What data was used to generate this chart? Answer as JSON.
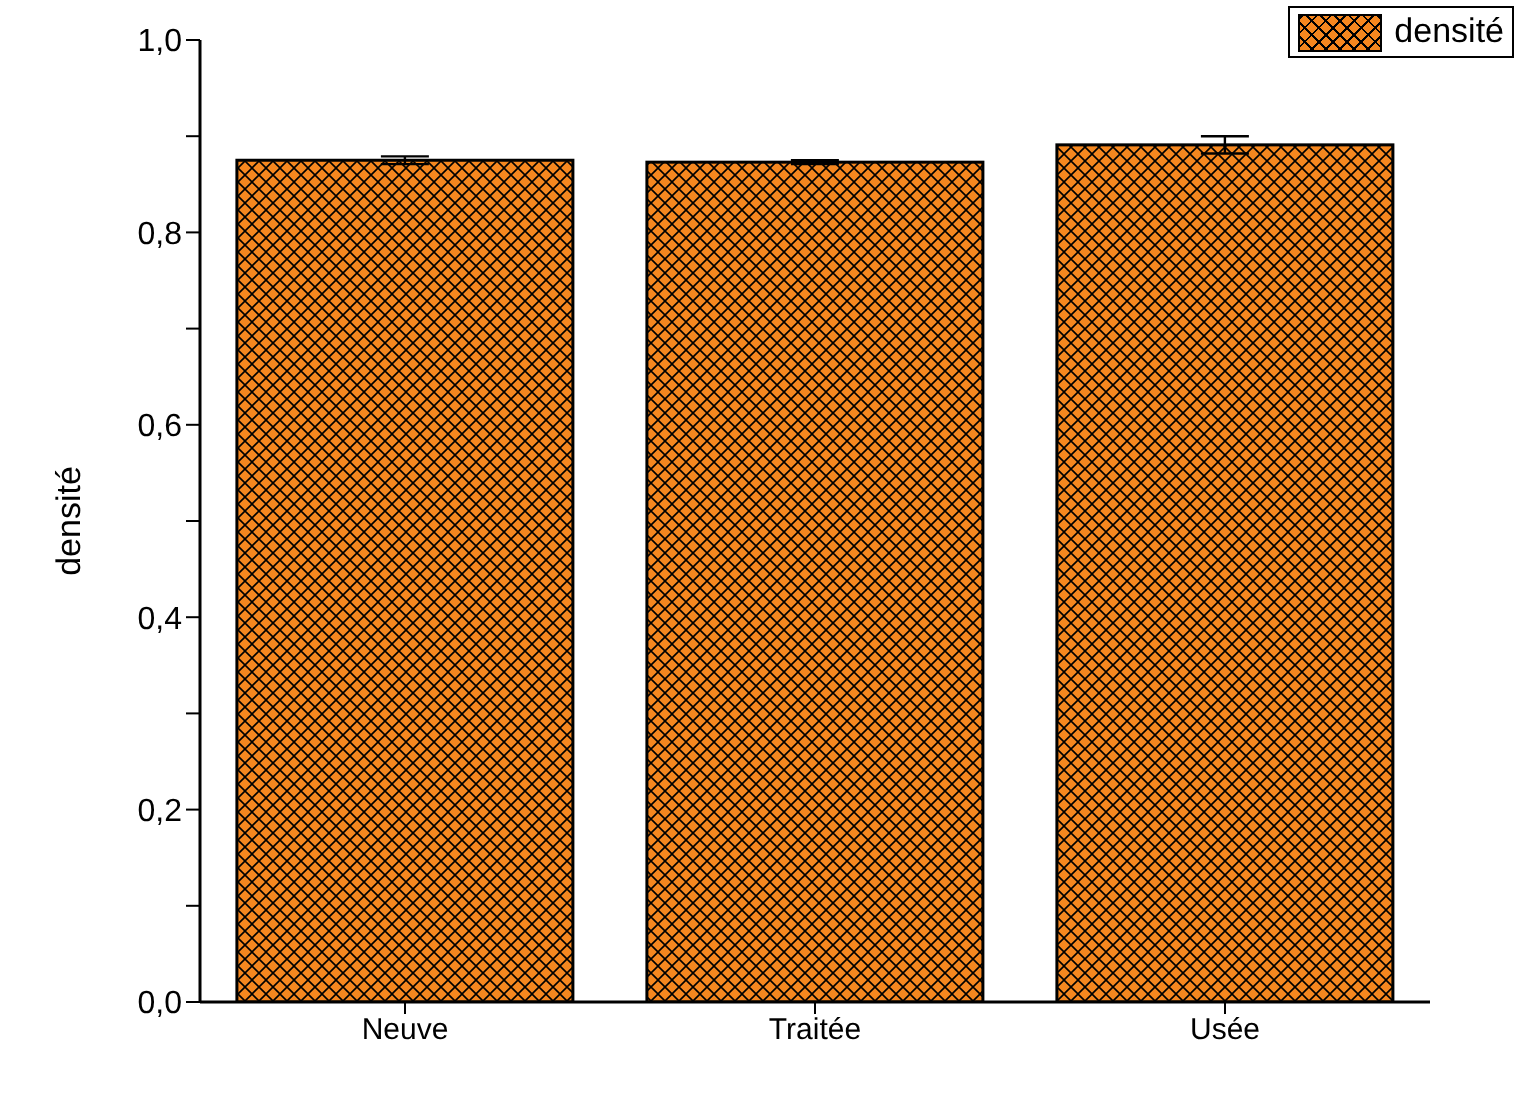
{
  "chart_data": {
    "type": "bar",
    "ylabel": "densité",
    "categories": [
      "Neuve",
      "Traitée",
      "Usée"
    ],
    "series": [
      {
        "name": "densité",
        "color": "#f5871f",
        "values": [
          0.875,
          0.873,
          0.891
        ],
        "errors": [
          0.004,
          0.002,
          0.009
        ]
      }
    ],
    "ylim": [
      0,
      1
    ],
    "yticks": [
      {
        "value": 0,
        "label": "0,0"
      },
      {
        "value": 0.1,
        "label": null
      },
      {
        "value": 0.2,
        "label": "0,2"
      },
      {
        "value": 0.3,
        "label": null
      },
      {
        "value": 0.4,
        "label": "0,4"
      },
      {
        "value": 0.5,
        "label": null
      },
      {
        "value": 0.6,
        "label": "0,6"
      },
      {
        "value": 0.7,
        "label": null
      },
      {
        "value": 0.8,
        "label": "0,8"
      },
      {
        "value": 0.9,
        "label": null
      },
      {
        "value": 1,
        "label": "1,0"
      }
    ],
    "grid": false,
    "legend": "top right"
  }
}
